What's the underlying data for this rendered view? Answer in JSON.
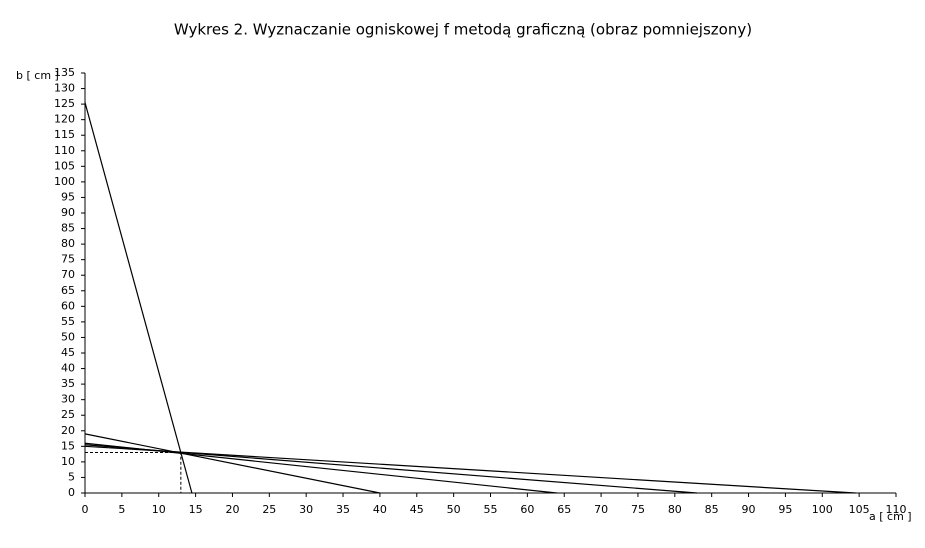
{
  "chart_data": {
    "type": "line",
    "title": "Wykres 2. Wyznaczanie ogniskowej f metodą graficzną (obraz pomniejszony)",
    "xlabel": "a [ cm ]",
    "ylabel": "b [ cm ]",
    "series": [
      {
        "color": "#000000",
        "x": [
          0,
          14.5
        ],
        "values": [
          125.5,
          0
        ]
      },
      {
        "color": "#000000",
        "x": [
          0,
          40
        ],
        "values": [
          19,
          0
        ]
      },
      {
        "color": "#000000",
        "x": [
          0,
          64
        ],
        "values": [
          16,
          0
        ]
      },
      {
        "color": "#000000",
        "x": [
          0,
          83
        ],
        "values": [
          15.5,
          0
        ]
      },
      {
        "color": "#000000",
        "x": [
          0,
          104.5
        ],
        "values": [
          15,
          0
        ]
      }
    ],
    "focal_point": {
      "x": 13,
      "y": 13
    },
    "xlim": [
      0,
      110
    ],
    "ylim": [
      0,
      135
    ],
    "xticks": [
      0,
      5,
      10,
      15,
      20,
      25,
      30,
      35,
      40,
      45,
      50,
      55,
      60,
      65,
      70,
      75,
      80,
      85,
      90,
      95,
      100,
      105,
      110
    ],
    "yticks": [
      0,
      5,
      10,
      15,
      20,
      25,
      30,
      35,
      40,
      45,
      50,
      55,
      60,
      65,
      70,
      75,
      80,
      85,
      90,
      95,
      100,
      105,
      110,
      115,
      120,
      125,
      130,
      135
    ],
    "grid": false
  }
}
